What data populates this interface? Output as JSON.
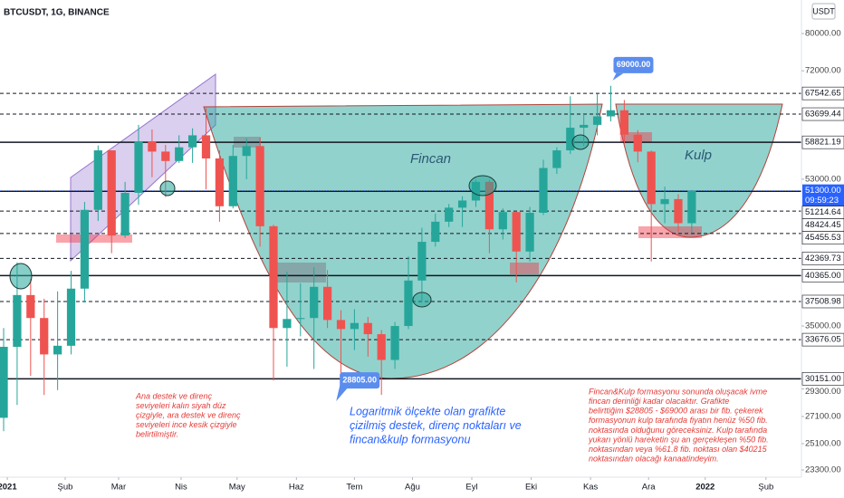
{
  "chart_data": {
    "type": "candlestick",
    "title": "BTCUSDT, 1G, BINANCE",
    "unit": "USDT",
    "log_scale": true,
    "up_color": "#26a69a",
    "down_color": "#ef5350",
    "categories": [
      null,
      null,
      null,
      null,
      null,
      null,
      null,
      null,
      null,
      null,
      null,
      null,
      null,
      null,
      null,
      null,
      null,
      null,
      null,
      null,
      null,
      null,
      null,
      null,
      null,
      null,
      null,
      null,
      null,
      null,
      null,
      null,
      null,
      null,
      null,
      null,
      null,
      null,
      null,
      null,
      null,
      null,
      null,
      null,
      null,
      null,
      null,
      null,
      null,
      null,
      null,
      null
    ],
    "open": [
      27000,
      33000,
      38200,
      35800,
      32300,
      33100,
      38900,
      48600,
      57500,
      45200,
      51000,
      59000,
      57300,
      55800,
      58000,
      60000,
      56200,
      49100,
      56600,
      58200,
      46400,
      34800,
      35700,
      35800,
      39100,
      35600,
      34700,
      35300,
      34200,
      31800,
      35000,
      39800,
      44400,
      47000,
      48900,
      49900,
      52600,
      46000,
      48300,
      43200,
      48200,
      54700,
      57500,
      61300,
      61800,
      63300,
      64400,
      60100,
      57300,
      49400,
      50100,
      46800
    ],
    "high": [
      34800,
      41900,
      40000,
      37800,
      38600,
      40900,
      49700,
      58300,
      57500,
      52600,
      61800,
      61000,
      58400,
      60000,
      61200,
      64800,
      57500,
      58400,
      59500,
      59600,
      46600,
      40800,
      39500,
      41300,
      41000,
      36600,
      36700,
      35900,
      34600,
      35400,
      42600,
      46200,
      48100,
      49400,
      50500,
      52900,
      52900,
      48800,
      48400,
      49000,
      56000,
      58000,
      67000,
      63700,
      67500,
      69000,
      66300,
      60900,
      57500,
      51900,
      50800,
      51400
    ],
    "low": [
      26000,
      28000,
      30400,
      28800,
      29200,
      32300,
      37400,
      47100,
      43000,
      44900,
      49300,
      53300,
      50400,
      55500,
      55500,
      51500,
      47000,
      48800,
      53000,
      43800,
      30000,
      31200,
      34000,
      31000,
      34800,
      30100,
      32700,
      32100,
      28805,
      31000,
      34700,
      37500,
      43800,
      46300,
      46300,
      49000,
      43000,
      44700,
      39600,
      42000,
      47900,
      53800,
      56900,
      58200,
      60000,
      62400,
      58500,
      55600,
      42000,
      46800,
      45700,
      45500
    ],
    "close": [
      33000,
      38200,
      35800,
      32300,
      33100,
      38900,
      48600,
      57500,
      45200,
      51000,
      59000,
      57300,
      55800,
      58000,
      60000,
      56200,
      49100,
      56600,
      58200,
      46400,
      34800,
      35700,
      35800,
      39100,
      35600,
      34700,
      35300,
      34200,
      31800,
      35000,
      39800,
      44400,
      47000,
      48900,
      49900,
      52600,
      46000,
      48300,
      43200,
      48200,
      54700,
      57500,
      61300,
      61800,
      63300,
      64400,
      60100,
      57300,
      49400,
      50100,
      46800,
      51300
    ],
    "xlim": [
      -0.27,
      59.13
    ],
    "xticks": [
      {
        "value": 0.27,
        "label": "2021"
      },
      {
        "value": 4.56,
        "label": "Şub"
      },
      {
        "value": 8.52,
        "label": "Mar"
      },
      {
        "value": 13.15,
        "label": "Nis"
      },
      {
        "value": 17.3,
        "label": "May"
      },
      {
        "value": 21.7,
        "label": "Haz"
      },
      {
        "value": 26.0,
        "label": "Tem"
      },
      {
        "value": 30.3,
        "label": "Ağu"
      },
      {
        "value": 34.7,
        "label": "Eyl"
      },
      {
        "value": 39.1,
        "label": "Eki"
      },
      {
        "value": 43.5,
        "label": "Kas"
      },
      {
        "value": 47.8,
        "label": "Ara"
      },
      {
        "value": 52.0,
        "label": "2022"
      },
      {
        "value": 56.5,
        "label": "Şub"
      }
    ],
    "ylim": [
      22830,
      87950
    ],
    "yticks": [
      {
        "value": 80000,
        "label": "80000.00"
      },
      {
        "value": 72000,
        "label": "72000.00"
      },
      {
        "value": 53000,
        "label": "53000.00"
      },
      {
        "value": 35000,
        "label": "35000.00"
      },
      {
        "value": 29300,
        "label": "29300.00"
      },
      {
        "value": 27100,
        "label": "27100.00"
      },
      {
        "value": 25100,
        "label": "25100.00"
      },
      {
        "value": 23300,
        "label": "23300.00"
      }
    ],
    "levels": [
      {
        "value": 67542.65,
        "style": "dashed"
      },
      {
        "value": 63699.44,
        "style": "dashed"
      },
      {
        "value": 58821.19,
        "style": "solid"
      },
      {
        "value": 51214.64,
        "style": "solid"
      },
      {
        "value": 48424.45,
        "style": "dashed"
      },
      {
        "value": 45455.53,
        "style": "dashed"
      },
      {
        "value": 42369.73,
        "style": "dashed"
      },
      {
        "value": 40365,
        "label": "40365.00",
        "style": "solid"
      },
      {
        "value": 37508.98,
        "style": "dashed"
      },
      {
        "value": 33676.05,
        "style": "dashed"
      },
      {
        "value": 30151,
        "label": "30151.00",
        "style": "solid"
      }
    ],
    "price_label": {
      "value": 51300,
      "label": "51300.00",
      "countdown": "09:59:23"
    },
    "annotations": {
      "cup": "Fincan",
      "handle": "Kulp",
      "peak": {
        "value": 69000,
        "label": "69000.00"
      },
      "bottom": {
        "value": 28805,
        "label": "28805.00"
      },
      "note_left": [
        "Ana destek ve direnç",
        "seviyeleri kalın siyah düz",
        "çizgiyle, ara destek ve direnç",
        "seviyeleri ince kesik çizgiyle",
        "belirtilmiştir."
      ],
      "note_center": [
        "Logaritmik ölçekte olan grafikte",
        "çizilmiş destek, direnç noktaları ve",
        "fincan&kulp formasyonu"
      ],
      "note_right": [
        "Fincan&Kulp formasyonu sonunda oluşacak ivme",
        "fincan derinliği kadar olacaktır. Grafikte",
        "belirttiğim $28805 - $69000 arası bir fib. çekerek",
        "formasyonun kulp tarafında fiyatın henüz %50 fib.",
        "noktasında olduğunu göreceksiniz. Kulp tarafında",
        "yukarı yönlü hareketin şu an gerçekleşen %50 fib.",
        "noktasından veya %61.8 fib. noktası olan $40215",
        "noktasından olacağı kanaatindeyim."
      ]
    }
  }
}
